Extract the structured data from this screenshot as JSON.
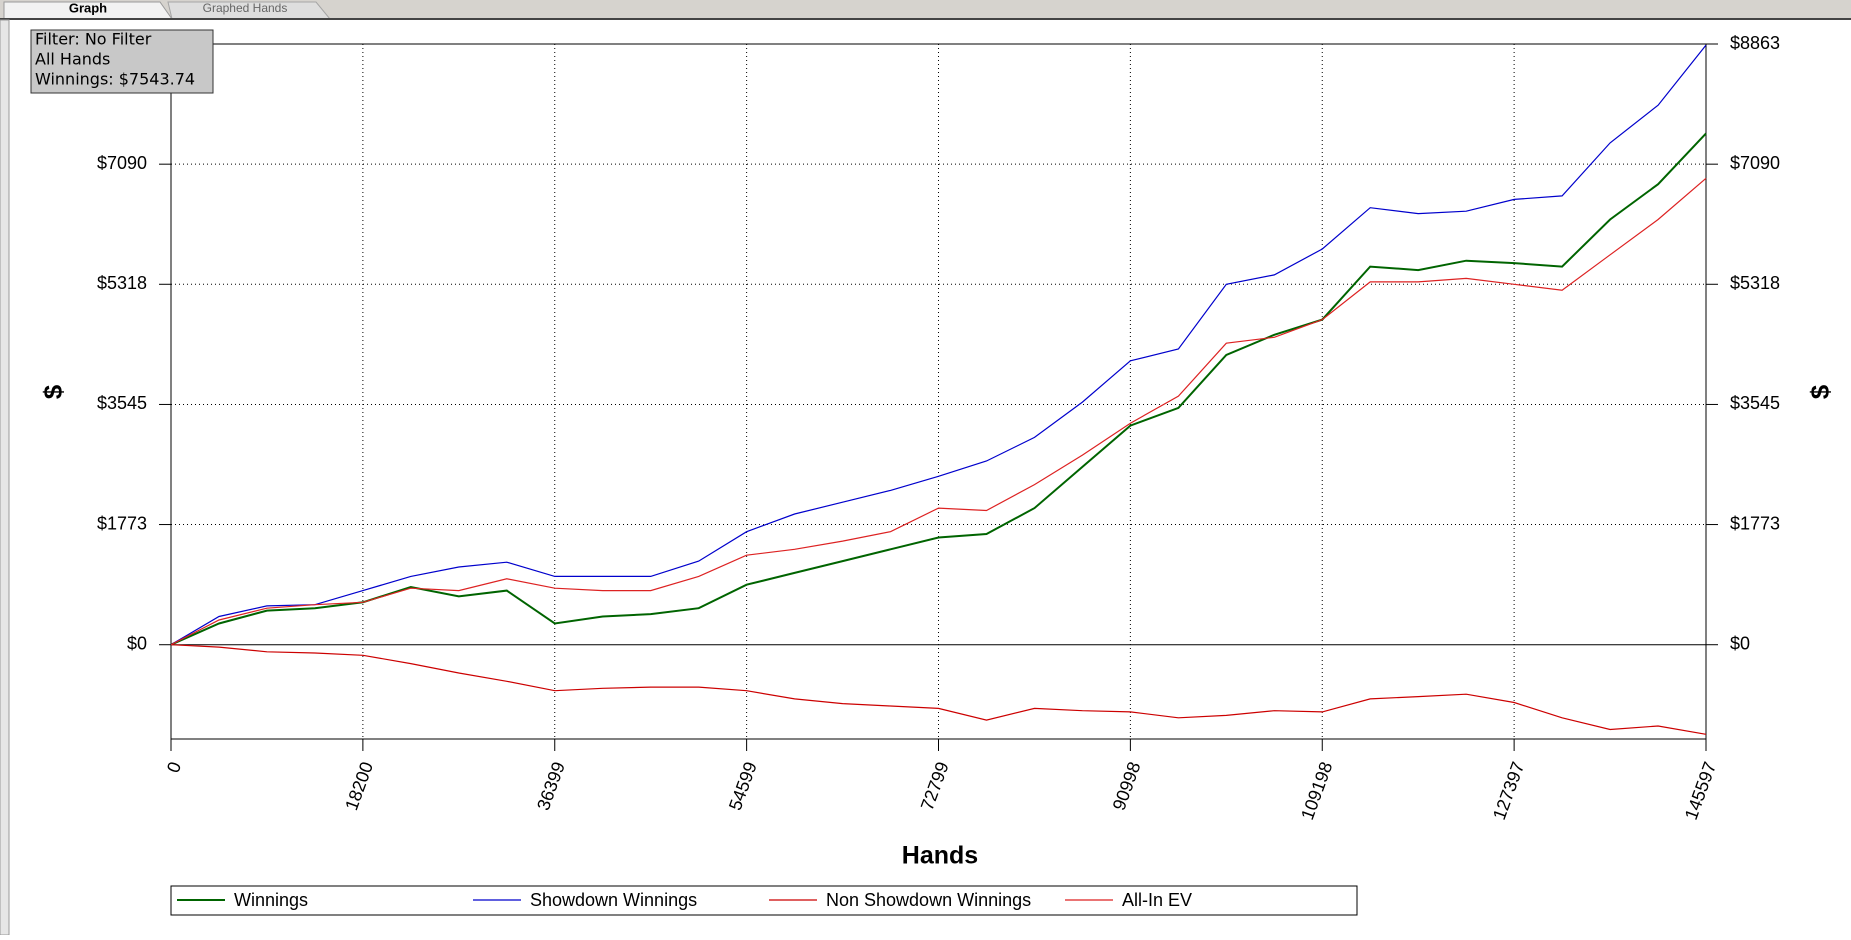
{
  "tabs": [
    "Graph",
    "Graphed Hands"
  ],
  "info_box": [
    "Filter: No Filter",
    "All Hands",
    "Winnings: $7543.74"
  ],
  "chart_data": {
    "type": "line",
    "x_label": "Hands",
    "y_label": "$",
    "x": [
      0,
      4550,
      9100,
      13650,
      18200,
      22750,
      27300,
      31850,
      36400,
      40950,
      45500,
      50050,
      54600,
      59150,
      63700,
      68250,
      72800,
      77350,
      81900,
      86450,
      91000,
      95550,
      100100,
      104650,
      109200,
      113750,
      118300,
      122850,
      127400,
      131950,
      136500,
      141050,
      145597
    ],
    "xlim": [
      0,
      145597
    ],
    "xticks": [
      0,
      18200,
      36399,
      54599,
      72799,
      90998,
      109198,
      127397,
      145597
    ],
    "ylim": [
      -1391,
      8863
    ],
    "yticks": [
      {
        "value": 0,
        "label": "$0"
      },
      {
        "value": 1773,
        "label": "$1773"
      },
      {
        "value": 3545,
        "label": "$3545"
      },
      {
        "value": 5318,
        "label": "$5318"
      },
      {
        "value": 7090,
        "label": "$7090"
      },
      {
        "value": 8863,
        "label": "$8863"
      }
    ],
    "grid": true,
    "series": [
      {
        "name": "Winnings",
        "color": "#006400",
        "values": [
          0,
          313,
          504,
          539,
          626,
          852,
          713,
          799,
          313,
          417,
          452,
          539,
          886,
          1060,
          1234,
          1408,
          1582,
          1634,
          2016,
          2624,
          3233,
          3494,
          4276,
          4572,
          4797,
          5579,
          5527,
          5666,
          5631,
          5579,
          6274,
          6795,
          7544
        ]
      },
      {
        "name": "Showdown Winnings",
        "color": "#0000cc",
        "values": [
          0,
          417,
          573,
          591,
          799,
          1008,
          1147,
          1217,
          1008,
          1008,
          1008,
          1234,
          1668,
          1929,
          2103,
          2277,
          2485,
          2711,
          3059,
          3580,
          4189,
          4363,
          5318,
          5457,
          5839,
          6448,
          6361,
          6396,
          6570,
          6622,
          7404,
          7960,
          8847
        ]
      },
      {
        "name": "Non Showdown Winnings",
        "color": "#cc0000",
        "values": [
          0,
          -35,
          -104,
          -122,
          -156,
          -278,
          -417,
          -539,
          -678,
          -643,
          -626,
          -626,
          -678,
          -800,
          -869,
          -904,
          -939,
          -1112,
          -939,
          -973,
          -991,
          -1078,
          -1043,
          -973,
          -991,
          -800,
          -765,
          -730,
          -852,
          -1078,
          -1251,
          -1199,
          -1321
        ]
      },
      {
        "name": "All-In EV",
        "color": "#dd2222",
        "values": [
          0,
          365,
          539,
          591,
          626,
          834,
          799,
          973,
          834,
          799,
          799,
          1008,
          1321,
          1408,
          1529,
          1668,
          2016,
          1981,
          2363,
          2798,
          3268,
          3667,
          4449,
          4536,
          4797,
          5353,
          5353,
          5405,
          5318,
          5231,
          5753,
          6274,
          6882
        ]
      }
    ]
  }
}
